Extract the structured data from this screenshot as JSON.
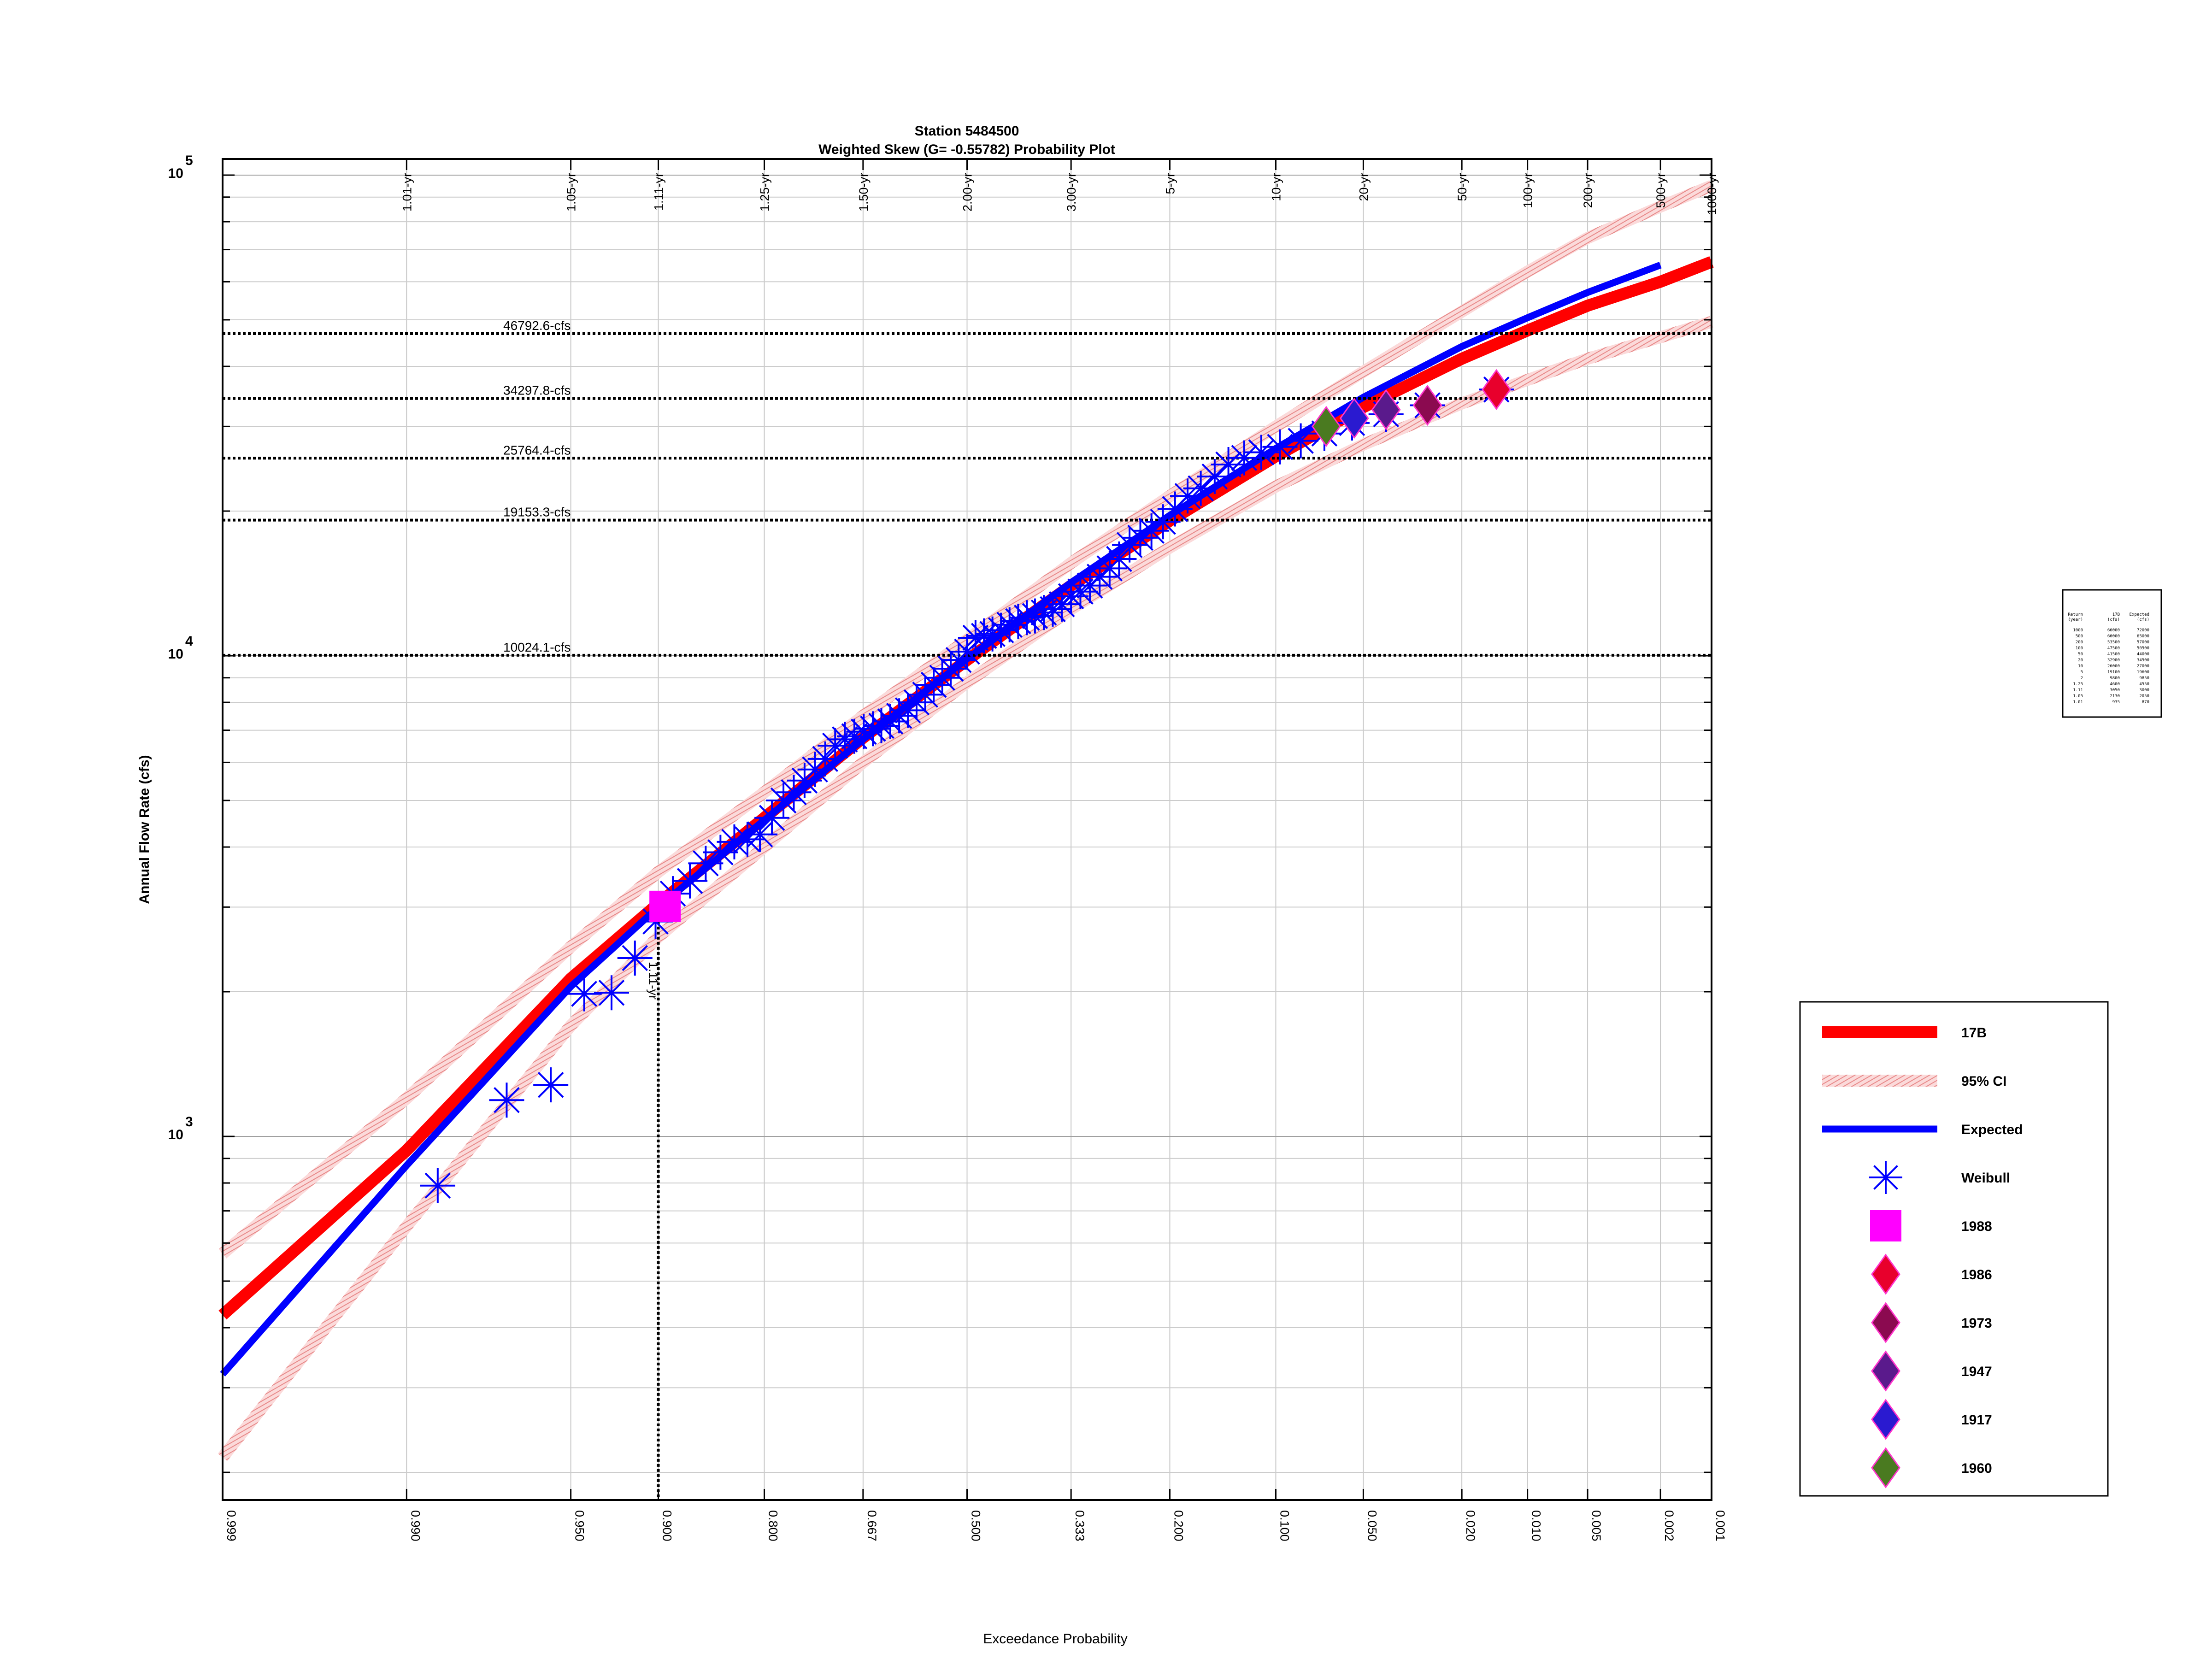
{
  "chart_data": {
    "type": "scatter",
    "title": "Station 5484500",
    "subtitle": "Weighted Skew (G= -0.55782) Probability Plot",
    "xlabel": "Exceedance Probability",
    "ylabel": "Annual Flow Rate (cfs)",
    "x_scale": "normal-probability",
    "y_scale": "log",
    "xlim": [
      0.999,
      0.001
    ],
    "ylim": [
      200,
      110000
    ],
    "grid": true,
    "x_ticks": [
      "0.999",
      "0.990",
      "0.950",
      "0.900",
      "0.800",
      "0.667",
      "0.500",
      "0.333",
      "0.200",
      "0.100",
      "0.050",
      "0.020",
      "0.010",
      "0.005",
      "0.002",
      "0.001"
    ],
    "x_tick_values": [
      0.999,
      0.99,
      0.95,
      0.9,
      0.8,
      0.667,
      0.5,
      0.333,
      0.2,
      0.1,
      0.05,
      0.02,
      0.01,
      0.005,
      0.002,
      0.001
    ],
    "y_tick_values": [
      1000,
      10000,
      100000
    ],
    "y_tick_labels": [
      {
        "base": "10",
        "exp": "3"
      },
      {
        "base": "10",
        "exp": "4"
      },
      {
        "base": "10",
        "exp": "5"
      }
    ],
    "return_periods": [
      {
        "label": "1.01-yr",
        "p": 0.99
      },
      {
        "label": "1.05-yr",
        "p": 0.95
      },
      {
        "label": "1.11-yr",
        "p": 0.9
      },
      {
        "label": "1.25-yr",
        "p": 0.8
      },
      {
        "label": "1.50-yr",
        "p": 0.667
      },
      {
        "label": "2.00-yr",
        "p": 0.5
      },
      {
        "label": "3.00-yr",
        "p": 0.333
      },
      {
        "label": "5-yr",
        "p": 0.2
      },
      {
        "label": "10-yr",
        "p": 0.1
      },
      {
        "label": "20-yr",
        "p": 0.05
      },
      {
        "label": "50-yr",
        "p": 0.02
      },
      {
        "label": "100-yr",
        "p": 0.01
      },
      {
        "label": "200-yr",
        "p": 0.005
      },
      {
        "label": "500-yr",
        "p": 0.002
      },
      {
        "label": "1000-yr",
        "p": 0.001
      }
    ],
    "reference_lines": [
      {
        "label": "46792.6-cfs",
        "value": 46792.6
      },
      {
        "label": "34297.8-cfs",
        "value": 34297.8
      },
      {
        "label": "25764.4-cfs",
        "value": 25764.4
      },
      {
        "label": "19153.3-cfs",
        "value": 19153.3
      },
      {
        "label": "10024.1-cfs",
        "value": 10024.1
      }
    ],
    "vertical_marker": {
      "label": "1.11-yr",
      "p": 0.9,
      "value": 3010
    },
    "series": [
      {
        "name": "17B",
        "color": "#ff0000",
        "style": "thick-line",
        "points": [
          [
            0.999,
            425
          ],
          [
            0.99,
            935
          ],
          [
            0.95,
            2130
          ],
          [
            0.9,
            3050
          ],
          [
            0.8,
            4600
          ],
          [
            0.667,
            6750
          ],
          [
            0.5,
            9800
          ],
          [
            0.333,
            14000
          ],
          [
            0.2,
            19100
          ],
          [
            0.1,
            26000
          ],
          [
            0.05,
            32900
          ],
          [
            0.02,
            41500
          ],
          [
            0.01,
            47500
          ],
          [
            0.005,
            53500
          ],
          [
            0.002,
            60000
          ],
          [
            0.001,
            66000
          ]
        ]
      },
      {
        "name": "95% CI",
        "color": "#f4a0a0",
        "style": "hatched-band",
        "upper": [
          [
            0.999,
            570
          ],
          [
            0.99,
            1200
          ],
          [
            0.95,
            2480
          ],
          [
            0.9,
            3550
          ],
          [
            0.8,
            5200
          ],
          [
            0.667,
            7500
          ],
          [
            0.5,
            10800
          ],
          [
            0.333,
            15600
          ],
          [
            0.2,
            21500
          ],
          [
            0.1,
            30000
          ],
          [
            0.05,
            39000
          ],
          [
            0.02,
            52000
          ],
          [
            0.01,
            63000
          ],
          [
            0.005,
            74000
          ],
          [
            0.002,
            86000
          ],
          [
            0.001,
            95000
          ]
        ],
        "lower": [
          [
            0.999,
            215
          ],
          [
            0.99,
            650
          ],
          [
            0.95,
            1700
          ],
          [
            0.9,
            2600
          ],
          [
            0.8,
            4000
          ],
          [
            0.667,
            6000
          ],
          [
            0.5,
            8800
          ],
          [
            0.333,
            12500
          ],
          [
            0.2,
            16800
          ],
          [
            0.1,
            22500
          ],
          [
            0.05,
            27500
          ],
          [
            0.02,
            33500
          ],
          [
            0.01,
            37500
          ],
          [
            0.005,
            41500
          ],
          [
            0.002,
            46000
          ],
          [
            0.001,
            49500
          ]
        ]
      },
      {
        "name": "Expected",
        "color": "#0000ff",
        "style": "line",
        "points": [
          [
            0.999,
            320
          ],
          [
            0.99,
            870
          ],
          [
            0.95,
            2050
          ],
          [
            0.9,
            3000
          ],
          [
            0.8,
            4550
          ],
          [
            0.667,
            6700
          ],
          [
            0.5,
            9850
          ],
          [
            0.333,
            14200
          ],
          [
            0.2,
            19600
          ],
          [
            0.1,
            27000
          ],
          [
            0.05,
            34500
          ],
          [
            0.02,
            44000
          ],
          [
            0.01,
            50500
          ],
          [
            0.005,
            57000
          ],
          [
            0.002,
            65000
          ]
        ]
      },
      {
        "name": "Weibull",
        "color": "#0000ff",
        "style": "asterisk",
        "points": [
          [
            0.986,
            790
          ],
          [
            0.972,
            1190
          ],
          [
            0.958,
            1280
          ],
          [
            0.944,
            1980
          ],
          [
            0.93,
            1990
          ],
          [
            0.916,
            2350
          ],
          [
            0.902,
            2800
          ],
          [
            0.889,
            3200
          ],
          [
            0.875,
            3400
          ],
          [
            0.861,
            3700
          ],
          [
            0.847,
            3900
          ],
          [
            0.833,
            4100
          ],
          [
            0.819,
            4150
          ],
          [
            0.805,
            4250
          ],
          [
            0.791,
            4600
          ],
          [
            0.777,
            5000
          ],
          [
            0.764,
            5200
          ],
          [
            0.75,
            5500
          ],
          [
            0.736,
            5800
          ],
          [
            0.722,
            6100
          ],
          [
            0.708,
            6500
          ],
          [
            0.694,
            6700
          ],
          [
            0.68,
            6800
          ],
          [
            0.666,
            6950
          ],
          [
            0.652,
            7050
          ],
          [
            0.639,
            7150
          ],
          [
            0.625,
            7300
          ],
          [
            0.611,
            7500
          ],
          [
            0.597,
            7700
          ],
          [
            0.583,
            8000
          ],
          [
            0.569,
            8300
          ],
          [
            0.555,
            8700
          ],
          [
            0.541,
            9000
          ],
          [
            0.527,
            9400
          ],
          [
            0.514,
            9800
          ],
          [
            0.5,
            10200
          ],
          [
            0.486,
            10900
          ],
          [
            0.472,
            11000
          ],
          [
            0.458,
            11100
          ],
          [
            0.444,
            11300
          ],
          [
            0.43,
            11600
          ],
          [
            0.416,
            11800
          ],
          [
            0.402,
            12000
          ],
          [
            0.389,
            12100
          ],
          [
            0.375,
            12300
          ],
          [
            0.361,
            12500
          ],
          [
            0.347,
            12800
          ],
          [
            0.333,
            13300
          ],
          [
            0.319,
            13600
          ],
          [
            0.305,
            14000
          ],
          [
            0.291,
            14600
          ],
          [
            0.277,
            15200
          ],
          [
            0.264,
            15900
          ],
          [
            0.25,
            17000
          ],
          [
            0.236,
            17600
          ],
          [
            0.222,
            18200
          ],
          [
            0.208,
            19000
          ],
          [
            0.194,
            20200
          ],
          [
            0.18,
            21500
          ],
          [
            0.166,
            22300
          ],
          [
            0.152,
            23600
          ],
          [
            0.139,
            25000
          ],
          [
            0.125,
            25800
          ],
          [
            0.111,
            26500
          ],
          [
            0.097,
            27200
          ],
          [
            0.083,
            28000
          ],
          [
            0.069,
            29000
          ],
          [
            0.055,
            30500
          ],
          [
            0.041,
            31800
          ],
          [
            0.028,
            33200
          ],
          [
            0.014,
            35800
          ]
        ]
      },
      {
        "name": "1988",
        "color": "#ff00ff",
        "style": "square",
        "points": [
          [
            0.895,
            3010
          ]
        ]
      },
      {
        "name": "1986",
        "color": "#e8002c",
        "style": "diamond",
        "points": [
          [
            0.014,
            35800
          ]
        ]
      },
      {
        "name": "1973",
        "color": "#8b0a50",
        "style": "diamond",
        "points": [
          [
            0.028,
            33200
          ]
        ]
      },
      {
        "name": "1947",
        "color": "#5a1a8c",
        "style": "diamond",
        "points": [
          [
            0.041,
            32500
          ]
        ]
      },
      {
        "name": "1917",
        "color": "#2a1ad0",
        "style": "diamond",
        "points": [
          [
            0.054,
            31200
          ]
        ]
      },
      {
        "name": "1960",
        "color": "#4a7a20",
        "style": "diamond",
        "points": [
          [
            0.068,
            30000
          ]
        ]
      }
    ],
    "legend": {
      "placement": "bottom-right",
      "entries": [
        "17B",
        "95% CI",
        "Expected",
        "Weibull",
        "1988",
        "1986",
        "1973",
        "1947",
        "1917",
        "1960"
      ]
    },
    "summary_table": {
      "headers": [
        "Return (year)",
        "17B (cfs)",
        "Expected (cfs)"
      ],
      "rows": [
        [
          "1000",
          "66000",
          "72000"
        ],
        [
          "500",
          "60000",
          "65000"
        ],
        [
          "200",
          "53500",
          "57000"
        ],
        [
          "100",
          "47500",
          "50500"
        ],
        [
          "50",
          "41500",
          "44000"
        ],
        [
          "20",
          "32900",
          "34500"
        ],
        [
          "10",
          "26000",
          "27000"
        ],
        [
          "5",
          "19100",
          "19600"
        ],
        [
          "2",
          "9800",
          "9850"
        ],
        [
          "1.25",
          "4600",
          "4550"
        ],
        [
          "1.11",
          "3050",
          "3000"
        ],
        [
          "1.05",
          "2130",
          "2050"
        ],
        [
          "1.01",
          "935",
          "870"
        ]
      ]
    }
  }
}
